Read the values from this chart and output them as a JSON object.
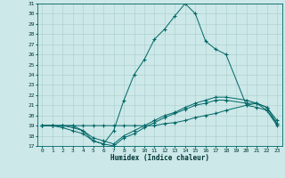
{
  "title": "",
  "xlabel": "Humidex (Indice chaleur)",
  "ylabel": "",
  "bg_color": "#cce8e8",
  "grid_color": "#aacccc",
  "line_color": "#006666",
  "marker_color": "#006666",
  "ylim": [
    17,
    31
  ],
  "xlim": [
    -0.5,
    23.5
  ],
  "yticks": [
    17,
    18,
    19,
    20,
    21,
    22,
    23,
    24,
    25,
    26,
    27,
    28,
    29,
    30,
    31
  ],
  "xticks": [
    0,
    1,
    2,
    3,
    4,
    5,
    6,
    7,
    8,
    9,
    10,
    11,
    12,
    13,
    14,
    15,
    16,
    17,
    18,
    19,
    20,
    21,
    22,
    23
  ],
  "series": [
    {
      "x": [
        0,
        1,
        2,
        3,
        4,
        5,
        6,
        7,
        8,
        9,
        10,
        11,
        12,
        13,
        14,
        15,
        16,
        17,
        18,
        20,
        21,
        22,
        23
      ],
      "y": [
        19.0,
        19.0,
        19.0,
        19.0,
        18.5,
        17.5,
        17.2,
        18.5,
        21.5,
        24.0,
        25.5,
        27.5,
        28.5,
        29.8,
        31.0,
        30.0,
        27.3,
        26.5,
        26.0,
        21.0,
        21.2,
        20.5,
        19.0
      ]
    },
    {
      "x": [
        0,
        1,
        2,
        3,
        4,
        5,
        6,
        7,
        8,
        9,
        10,
        11,
        12,
        13,
        14,
        15,
        16,
        17,
        18,
        20,
        21,
        22,
        23
      ],
      "y": [
        19.0,
        19.0,
        18.8,
        18.5,
        18.2,
        17.5,
        17.2,
        17.0,
        17.8,
        18.2,
        18.8,
        19.3,
        19.8,
        20.2,
        20.6,
        21.0,
        21.2,
        21.5,
        21.5,
        21.2,
        21.2,
        20.8,
        19.2
      ]
    },
    {
      "x": [
        0,
        1,
        2,
        3,
        4,
        5,
        6,
        7,
        8,
        9,
        10,
        11,
        12,
        13,
        14,
        15,
        16,
        17,
        18,
        20,
        21,
        22,
        23
      ],
      "y": [
        19.0,
        19.0,
        19.0,
        18.8,
        18.5,
        17.8,
        17.5,
        17.2,
        18.0,
        18.5,
        19.0,
        19.5,
        20.0,
        20.3,
        20.8,
        21.2,
        21.5,
        21.8,
        21.8,
        21.5,
        21.2,
        20.8,
        19.5
      ]
    },
    {
      "x": [
        0,
        1,
        2,
        3,
        4,
        5,
        6,
        7,
        8,
        9,
        10,
        11,
        12,
        13,
        14,
        15,
        16,
        17,
        18,
        20,
        21,
        22,
        23
      ],
      "y": [
        19.0,
        19.0,
        19.0,
        19.0,
        19.0,
        19.0,
        19.0,
        19.0,
        19.0,
        19.0,
        19.0,
        19.0,
        19.2,
        19.3,
        19.5,
        19.8,
        20.0,
        20.2,
        20.5,
        21.0,
        20.8,
        20.5,
        19.2
      ]
    }
  ]
}
